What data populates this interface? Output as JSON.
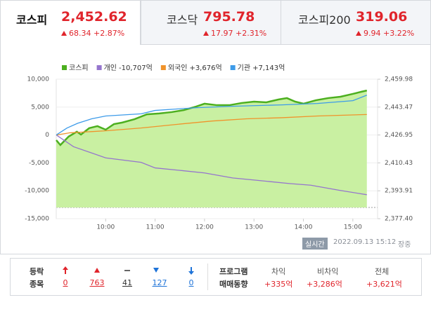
{
  "tabs": [
    {
      "name": "코스피",
      "value": "2,452.62",
      "change": "68.34 +2.87%"
    },
    {
      "name": "코스닥",
      "value": "795.78",
      "change": "17.97 +2.31%"
    },
    {
      "name": "코스피200",
      "value": "319.06",
      "change": "9.94 +3.22%"
    }
  ],
  "chart_data": {
    "type": "line",
    "grid": true,
    "xlim": [
      540,
      930
    ],
    "xticks": [
      {
        "value": 600,
        "label": "10:00"
      },
      {
        "value": 660,
        "label": "11:00"
      },
      {
        "value": 720,
        "label": "12:00"
      },
      {
        "value": 780,
        "label": "13:00"
      },
      {
        "value": 840,
        "label": "14:00"
      },
      {
        "value": 900,
        "label": "15:00"
      }
    ],
    "ylim": [
      -15000,
      10000
    ],
    "yticks": [
      {
        "value": 10000,
        "label": "10,000"
      },
      {
        "value": 5000,
        "label": "5,000"
      },
      0,
      {
        "value": -5000,
        "label": "-5,000"
      },
      {
        "value": -10000,
        "label": "-10,000"
      },
      {
        "value": -15000,
        "label": "-15,000"
      }
    ],
    "y2lim": [
      2377.4,
      2459.98
    ],
    "y2ticks": [
      {
        "value": 2459.98,
        "label": "2,459.98"
      },
      {
        "value": 2443.47,
        "label": "2,443.47"
      },
      {
        "value": 2426.95,
        "label": "2,426.95"
      },
      {
        "value": 2410.43,
        "label": "2,410.43"
      },
      {
        "value": 2393.91,
        "label": "2,393.91"
      },
      {
        "value": 2377.4,
        "label": "2,377.40"
      }
    ],
    "series": [
      {
        "name": "코스피",
        "color": "#4caf1f",
        "fill": "#c9f0a2",
        "axis": "y2",
        "x": [
          540,
          545,
          555,
          565,
          570,
          580,
          590,
          600,
          610,
          620,
          635,
          650,
          665,
          680,
          695,
          710,
          720,
          735,
          750,
          765,
          780,
          795,
          810,
          820,
          830,
          840,
          855,
          870,
          885,
          900,
          910,
          917
        ],
        "values": [
          2423.9,
          2421.0,
          2426.0,
          2428.9,
          2427.2,
          2431.0,
          2432.2,
          2430.1,
          2433.4,
          2434.3,
          2436.3,
          2439.2,
          2439.7,
          2440.5,
          2441.7,
          2443.8,
          2445.5,
          2444.6,
          2444.6,
          2445.9,
          2446.7,
          2446.3,
          2448.0,
          2448.8,
          2446.7,
          2445.5,
          2447.5,
          2448.8,
          2449.6,
          2451.3,
          2452.5,
          2453.3
        ]
      },
      {
        "name": "개인",
        "legend_value": "-10,707억",
        "color": "#9575cd",
        "x": [
          540,
          561,
          600,
          643,
          660,
          694,
          720,
          754,
          789,
          823,
          849,
          883,
          917
        ],
        "values": [
          0,
          -2100,
          -4100,
          -4900,
          -5900,
          -6400,
          -6800,
          -7700,
          -8200,
          -8700,
          -9000,
          -9900,
          -10707
        ]
      },
      {
        "name": "외국인",
        "legend_value": "+3,676억",
        "color": "#f0932b",
        "x": [
          540,
          557,
          600,
          643,
          686,
          729,
          771,
          814,
          857,
          917
        ],
        "values": [
          0,
          400,
          750,
          1250,
          1900,
          2500,
          2900,
          3100,
          3400,
          3676
        ]
      },
      {
        "name": "기관",
        "legend_value": "+7,143억",
        "color": "#3d9be9",
        "x": [
          540,
          553,
          566,
          583,
          600,
          643,
          660,
          711,
          754,
          814,
          857,
          900,
          917
        ],
        "values": [
          0,
          1250,
          2100,
          2900,
          3400,
          3800,
          4400,
          4900,
          5150,
          5400,
          5650,
          6150,
          7143
        ]
      }
    ]
  },
  "status": {
    "badge": "실시간",
    "time": "2022.09.13 15:12",
    "session": "장중"
  },
  "breadth": {
    "label1": "등락",
    "label2": "종목",
    "counts": [
      "0",
      "763",
      "41",
      "127",
      "0"
    ]
  },
  "program": {
    "label1": "프로그램",
    "label2": "매매동향",
    "columns": [
      {
        "name": "차익",
        "value": "+335억"
      },
      {
        "name": "비차익",
        "value": "+3,286억"
      },
      {
        "name": "전체",
        "value": "+3,621억"
      }
    ]
  }
}
